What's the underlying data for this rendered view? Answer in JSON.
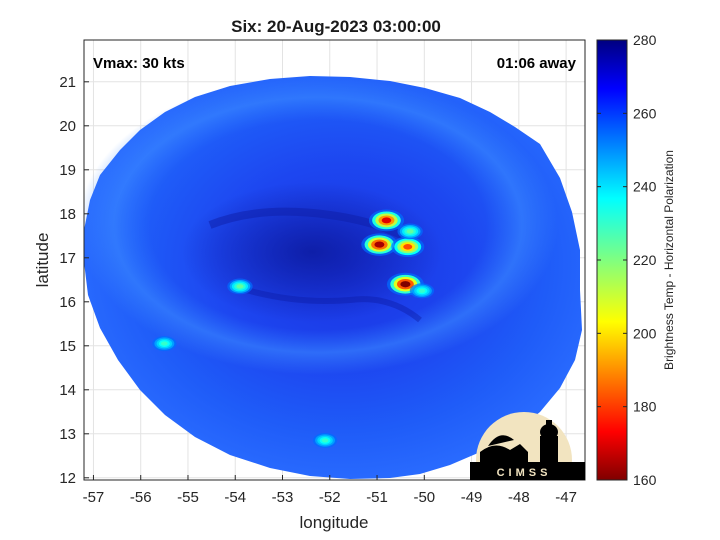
{
  "chart_data": {
    "type": "heatmap",
    "title": "Six: 20-Aug-2023 03:00:00",
    "xlabel": "longitude",
    "ylabel": "latitude",
    "xlim": [
      -57.2,
      -46.6
    ],
    "ylim": [
      11.95,
      21.95
    ],
    "xticks": [
      -57,
      -56,
      -55,
      -54,
      -53,
      -52,
      -51,
      -50,
      -49,
      -48,
      -47
    ],
    "yticks": [
      12,
      13,
      14,
      15,
      16,
      17,
      18,
      19,
      20,
      21
    ],
    "grid": true,
    "annotations": {
      "left": "Vmax: 30 kts",
      "right": "01:06 away"
    },
    "colorbar": {
      "label": "Brightness Temp - Horizontal Polarization",
      "range": [
        160,
        280
      ],
      "ticks": [
        160,
        180,
        200,
        220,
        240,
        260,
        280
      ]
    },
    "background_temp": 262,
    "swath_center": [
      -52.15,
      16.45
    ],
    "features": [
      {
        "lon": -50.95,
        "lat": 17.3,
        "temp": 172
      },
      {
        "lon": -50.8,
        "lat": 17.85,
        "temp": 178
      },
      {
        "lon": -50.35,
        "lat": 17.25,
        "temp": 190
      },
      {
        "lon": -50.4,
        "lat": 16.4,
        "temp": 168
      },
      {
        "lon": -50.3,
        "lat": 17.6,
        "temp": 232
      },
      {
        "lon": -50.05,
        "lat": 16.25,
        "temp": 238
      },
      {
        "lon": -53.9,
        "lat": 16.35,
        "temp": 232
      },
      {
        "lon": -55.5,
        "lat": 15.05,
        "temp": 238
      },
      {
        "lon": -52.1,
        "lat": 12.85,
        "temp": 238
      }
    ],
    "logo_text": "CIMSS"
  }
}
